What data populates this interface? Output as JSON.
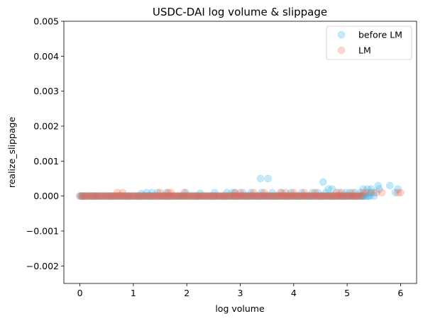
{
  "chart_data": {
    "type": "scatter",
    "title": "USDC-DAI log volume & slippage",
    "xlabel": "log volume",
    "ylabel": "realize_slippage",
    "xlim": [
      -0.3,
      6.3
    ],
    "ylim": [
      -0.0025,
      0.005
    ],
    "x_ticks": [
      0,
      1,
      2,
      3,
      4,
      5,
      6
    ],
    "x_tick_labels": [
      "0",
      "1",
      "2",
      "3",
      "4",
      "5",
      "6"
    ],
    "y_ticks": [
      -0.002,
      -0.001,
      0.0,
      0.001,
      0.002,
      0.003,
      0.004,
      0.005
    ],
    "y_tick_labels": [
      "−0.002",
      "−0.001",
      "0.000",
      "0.001",
      "0.002",
      "0.003",
      "0.004",
      "0.005"
    ],
    "grid": false,
    "legend_position": "top-right",
    "series": [
      {
        "name": "before LM",
        "color": "#38b9f0",
        "alpha": 0.3,
        "points": [
          [
            0.05,
            0.0
          ],
          [
            0.3,
            0.0
          ],
          [
            0.6,
            0.0
          ],
          [
            0.9,
            0.0
          ],
          [
            1.1,
            0.0
          ],
          [
            1.3,
            0.0
          ],
          [
            1.6,
            0.0
          ],
          [
            1.9,
            0.0
          ],
          [
            2.2,
            0.0
          ],
          [
            2.5,
            0.0
          ],
          [
            2.7,
            0.0
          ],
          [
            2.9,
            0.0
          ],
          [
            3.1,
            0.0
          ],
          [
            3.3,
            0.0
          ],
          [
            3.5,
            0.0
          ],
          [
            3.7,
            0.0
          ],
          [
            3.9,
            0.0
          ],
          [
            4.1,
            0.0
          ],
          [
            4.3,
            0.0
          ],
          [
            4.5,
            0.0
          ],
          [
            4.7,
            0.0
          ],
          [
            4.9,
            0.0
          ],
          [
            5.1,
            0.0
          ],
          [
            5.3,
            0.0
          ],
          [
            5.5,
            0.0
          ],
          [
            1.15,
            7e-05
          ],
          [
            1.25,
            0.0001
          ],
          [
            1.35,
            0.0001
          ],
          [
            1.45,
            0.0001
          ],
          [
            1.62,
            0.0001
          ],
          [
            1.98,
            0.0001
          ],
          [
            2.25,
            8e-05
          ],
          [
            2.52,
            0.0001
          ],
          [
            2.75,
            0.0001
          ],
          [
            2.85,
            0.0001
          ],
          [
            2.9,
            9e-05
          ],
          [
            3.05,
            0.0001
          ],
          [
            3.2,
            0.0001
          ],
          [
            3.4,
            0.0001
          ],
          [
            3.6,
            0.0001
          ],
          [
            3.78,
            0.0001
          ],
          [
            3.95,
            0.0001
          ],
          [
            4.15,
            0.0001
          ],
          [
            4.35,
            0.0001
          ],
          [
            4.45,
            0.0001
          ],
          [
            4.6,
            0.0001
          ],
          [
            4.72,
            0.0002
          ],
          [
            4.85,
            0.0001
          ],
          [
            4.98,
            0.0001
          ],
          [
            5.05,
            0.0001
          ],
          [
            5.15,
            0.0001
          ],
          [
            5.25,
            0.0001
          ],
          [
            5.3,
            0.0002
          ],
          [
            5.38,
            0.0002
          ],
          [
            5.42,
            0.0001
          ],
          [
            3.38,
            0.0005
          ],
          [
            3.52,
            0.0005
          ],
          [
            4.55,
            0.0004
          ],
          [
            4.65,
            0.0002
          ],
          [
            5.45,
            0.0002
          ],
          [
            5.5,
            0.0001
          ],
          [
            5.58,
            0.0003
          ],
          [
            5.8,
            0.0003
          ],
          [
            5.95,
            0.0002
          ],
          [
            5.9,
            0.0001
          ],
          [
            5.6,
            0.0002
          ]
        ]
      },
      {
        "name": "LM",
        "color": "#f26045",
        "alpha": 0.25,
        "points": [
          [
            0.7,
            0.0001
          ],
          [
            0.8,
            0.0001
          ],
          [
            1.5,
            0.0001
          ],
          [
            1.65,
            0.0001
          ],
          [
            1.7,
            0.0001
          ],
          [
            1.95,
            0.0001
          ],
          [
            2.9,
            0.0001
          ],
          [
            3.0,
            0.0001
          ],
          [
            3.25,
            0.0001
          ],
          [
            3.45,
            0.0001
          ],
          [
            3.75,
            0.0001
          ],
          [
            3.85,
            0.0001
          ],
          [
            4.0,
            0.0001
          ],
          [
            4.2,
            0.0001
          ],
          [
            4.4,
            0.0001
          ],
          [
            4.8,
            0.0001
          ],
          [
            4.9,
            0.0001
          ],
          [
            5.1,
            0.0001
          ],
          [
            5.3,
            0.0001
          ],
          [
            5.35,
            0.0001
          ],
          [
            5.45,
            0.0001
          ],
          [
            5.55,
            0.0001
          ],
          [
            5.65,
            0.0001
          ],
          [
            5.95,
            0.0001
          ],
          [
            6.0,
            0.0001
          ]
        ]
      }
    ],
    "dense_bands": [
      {
        "series": "before LM",
        "x_start": 0.0,
        "x_end": 5.45,
        "y": 0.0
      },
      {
        "series": "LM",
        "x_start": 0.0,
        "x_end": 5.3,
        "y": 0.0
      }
    ]
  }
}
